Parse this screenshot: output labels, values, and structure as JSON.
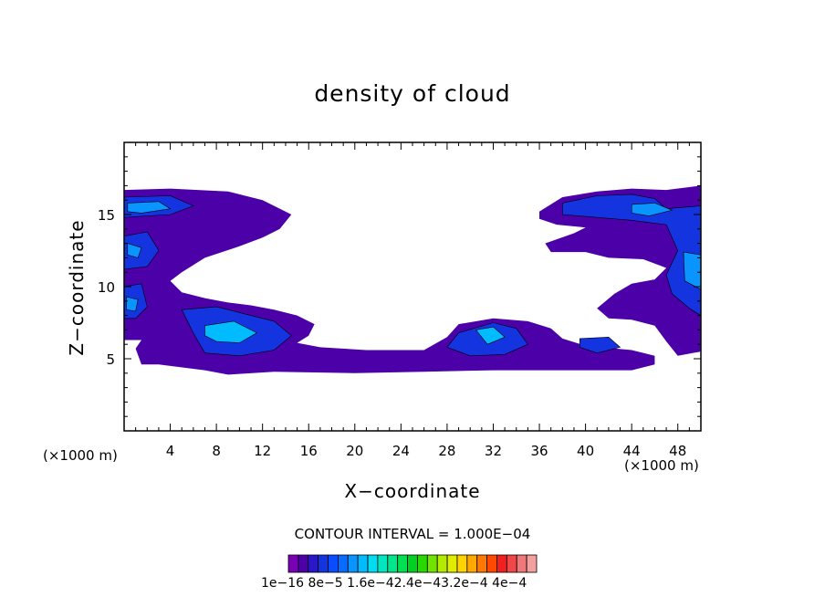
{
  "chart_data": {
    "type": "heatmap",
    "title": "density of cloud",
    "xlabel": "X−coordinate",
    "ylabel": "Z−coordinate",
    "x_unit_label": "(×1000 m)",
    "xlim": [
      0,
      50
    ],
    "ylim": [
      0,
      20
    ],
    "x_ticks": [
      4,
      8,
      12,
      16,
      20,
      24,
      28,
      32,
      36,
      40,
      44,
      48
    ],
    "x_tick_labels": [
      "4",
      "8",
      "12",
      "16",
      "20",
      "24",
      "28",
      "32",
      "36",
      "40",
      "44",
      "48"
    ],
    "y_ticks": [
      5,
      10,
      15
    ],
    "y_tick_labels": [
      "5",
      "10",
      "15"
    ],
    "contour_interval_text": "CONTOUR INTERVAL = 1.000E−04",
    "colorbar": {
      "labels_text": "1e−16  8e−5  1.6e−42.4e−43.2e−4  4e−4",
      "colors": [
        "#7a00b4",
        "#4b00a8",
        "#2a18c8",
        "#1434e0",
        "#0a4cff",
        "#0a6cff",
        "#0a94ff",
        "#00bcff",
        "#00dcf0",
        "#00e6c0",
        "#00e68c",
        "#00e050",
        "#00d020",
        "#28d800",
        "#70e400",
        "#b4ec00",
        "#e0ec00",
        "#ffd200",
        "#ffa800",
        "#ff7800",
        "#ff4800",
        "#f02020",
        "#f04848",
        "#f07878",
        "#f4a0a0"
      ]
    },
    "regions": [
      {
        "level": 1,
        "points": [
          [
            0,
            16.7
          ],
          [
            4,
            16.8
          ],
          [
            9,
            16.6
          ],
          [
            12,
            16
          ],
          [
            14.5,
            15
          ],
          [
            13.5,
            14
          ],
          [
            12,
            13.4
          ],
          [
            10,
            12.8
          ],
          [
            7,
            12
          ],
          [
            5,
            11
          ],
          [
            4,
            10.4
          ],
          [
            5,
            9.6
          ],
          [
            7,
            9.2
          ],
          [
            9,
            8.9
          ],
          [
            11,
            8.7
          ],
          [
            13,
            8.4
          ],
          [
            15,
            8
          ],
          [
            16.5,
            7.4
          ],
          [
            16,
            6.6
          ],
          [
            15,
            6.1
          ],
          [
            17,
            5.8
          ],
          [
            21,
            5.6
          ],
          [
            26,
            5.6
          ],
          [
            28,
            6.5
          ],
          [
            29,
            7.4
          ],
          [
            32,
            7.8
          ],
          [
            35,
            7.6
          ],
          [
            37,
            7.1
          ],
          [
            38,
            6.4
          ],
          [
            40,
            5.9
          ],
          [
            44,
            5.6
          ],
          [
            46,
            5.2
          ],
          [
            46,
            4.6
          ],
          [
            44,
            4.2
          ],
          [
            38,
            4.2
          ],
          [
            32,
            4.2
          ],
          [
            26,
            4.1
          ],
          [
            20,
            4
          ],
          [
            13,
            4.1
          ],
          [
            9,
            3.9
          ],
          [
            7,
            4.2
          ],
          [
            3,
            4.6
          ],
          [
            1.5,
            4.6
          ],
          [
            1,
            5.7
          ],
          [
            1.5,
            6.3
          ],
          [
            0,
            6.3
          ]
        ]
      },
      {
        "level": 1,
        "points": [
          [
            36,
            15.2
          ],
          [
            38,
            16.2
          ],
          [
            41,
            16.6
          ],
          [
            44,
            16.8
          ],
          [
            47,
            16.7
          ],
          [
            50,
            17
          ],
          [
            50,
            5.5
          ],
          [
            48,
            5.2
          ],
          [
            47,
            6.2
          ],
          [
            46,
            7.3
          ],
          [
            44,
            7.7
          ],
          [
            42,
            7.8
          ],
          [
            41,
            8.5
          ],
          [
            42.5,
            9.5
          ],
          [
            44,
            10.2
          ],
          [
            46,
            10.5
          ],
          [
            47,
            11.3
          ],
          [
            45,
            11.9
          ],
          [
            42,
            12
          ],
          [
            40,
            12.4
          ],
          [
            37,
            12.4
          ],
          [
            36.5,
            13
          ],
          [
            39,
            13.7
          ],
          [
            40,
            14.1
          ],
          [
            37.5,
            14.3
          ],
          [
            36,
            14.7
          ]
        ]
      },
      {
        "level": 3,
        "points": [
          [
            0,
            16.2
          ],
          [
            4,
            16.3
          ],
          [
            6,
            15.6
          ],
          [
            4,
            15
          ],
          [
            0,
            14.8
          ]
        ]
      },
      {
        "level": 3,
        "points": [
          [
            0,
            13.5
          ],
          [
            2,
            13.8
          ],
          [
            3,
            12.5
          ],
          [
            2,
            11.4
          ],
          [
            0,
            11.2
          ]
        ]
      },
      {
        "level": 3,
        "points": [
          [
            0,
            10
          ],
          [
            1.5,
            10.2
          ],
          [
            2,
            8.6
          ],
          [
            1,
            7.8
          ],
          [
            0,
            7.8
          ]
        ]
      },
      {
        "level": 3,
        "points": [
          [
            5,
            8.4
          ],
          [
            8,
            8.6
          ],
          [
            10,
            8.2
          ],
          [
            13,
            7.6
          ],
          [
            14.5,
            6.6
          ],
          [
            13,
            5.6
          ],
          [
            10,
            5.2
          ],
          [
            7,
            5.4
          ],
          [
            6,
            6.8
          ]
        ]
      },
      {
        "level": 3,
        "points": [
          [
            29,
            6.8
          ],
          [
            32,
            7.5
          ],
          [
            34,
            7.1
          ],
          [
            35,
            6
          ],
          [
            33,
            5.3
          ],
          [
            30,
            5.2
          ],
          [
            28,
            5.8
          ]
        ]
      },
      {
        "level": 3,
        "points": [
          [
            39.5,
            6.4
          ],
          [
            42,
            6.5
          ],
          [
            43,
            5.8
          ],
          [
            41,
            5.4
          ],
          [
            39.5,
            5.8
          ]
        ]
      },
      {
        "level": 3,
        "points": [
          [
            38,
            15.8
          ],
          [
            41,
            16.3
          ],
          [
            44,
            16.4
          ],
          [
            46,
            16.1
          ],
          [
            47,
            15.4
          ],
          [
            50,
            15.6
          ],
          [
            50,
            8
          ],
          [
            49,
            8.5
          ],
          [
            47.5,
            9.5
          ],
          [
            47,
            10.8
          ],
          [
            48,
            12.5
          ],
          [
            47,
            14.3
          ],
          [
            44,
            14.6
          ],
          [
            41,
            14.8
          ],
          [
            38,
            15
          ]
        ]
      },
      {
        "level": 6,
        "points": [
          [
            0.3,
            15.8
          ],
          [
            3,
            15.9
          ],
          [
            4,
            15.4
          ],
          [
            1.5,
            15.1
          ],
          [
            0.3,
            15.2
          ]
        ]
      },
      {
        "level": 6,
        "points": [
          [
            0.3,
            13
          ],
          [
            1.5,
            12.7
          ],
          [
            1.2,
            12
          ],
          [
            0.3,
            12.2
          ]
        ]
      },
      {
        "level": 6,
        "points": [
          [
            0.2,
            9.3
          ],
          [
            1.2,
            9.1
          ],
          [
            1,
            8.3
          ],
          [
            0.2,
            8.4
          ]
        ]
      },
      {
        "level": 7,
        "points": [
          [
            7,
            7.3
          ],
          [
            9.5,
            7.6
          ],
          [
            11.5,
            6.8
          ],
          [
            10,
            6.1
          ],
          [
            8,
            6.2
          ],
          [
            7,
            6.6
          ]
        ]
      },
      {
        "level": 7,
        "points": [
          [
            30.5,
            7
          ],
          [
            32,
            7.2
          ],
          [
            33,
            6.5
          ],
          [
            31.5,
            6
          ]
        ]
      },
      {
        "level": 6,
        "points": [
          [
            48.5,
            12.4
          ],
          [
            50,
            12.2
          ],
          [
            50,
            9.8
          ],
          [
            48.6,
            10.4
          ]
        ]
      },
      {
        "level": 6,
        "points": [
          [
            44,
            15.7
          ],
          [
            46,
            15.8
          ],
          [
            47.5,
            15.3
          ],
          [
            45.5,
            14.9
          ],
          [
            44,
            15.1
          ]
        ]
      }
    ]
  }
}
